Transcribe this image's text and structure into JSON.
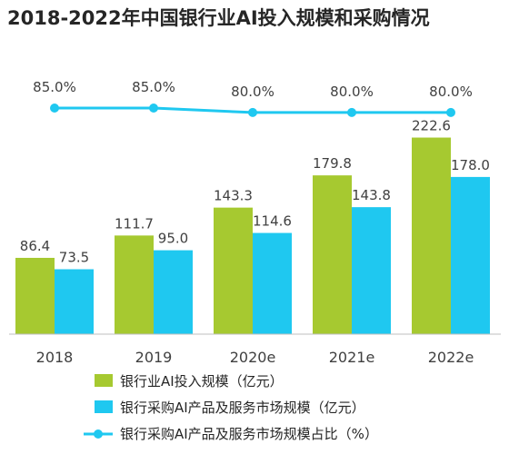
{
  "chart_data": {
    "type": "bar",
    "title": "2018-2022年中国银行业AI投入规模和采购情况",
    "categories": [
      "2018",
      "2019",
      "2020e",
      "2021e",
      "2022e"
    ],
    "series": [
      {
        "name": "银行业AI投入规模（亿元）",
        "type": "bar",
        "color": "#a6c930",
        "values": [
          86.4,
          111.7,
          143.3,
          179.8,
          222.6
        ]
      },
      {
        "name": "银行采购AI产品及服务市场规模（亿元）",
        "type": "bar",
        "color": "#1fc8f0",
        "values": [
          73.5,
          95.0,
          114.6,
          143.8,
          178.0
        ]
      },
      {
        "name": "银行采购AI产品及服务市场规模占比（%）",
        "type": "line",
        "color": "#1fc8f0",
        "values": [
          85.0,
          85.0,
          80.0,
          80.0,
          80.0
        ]
      }
    ],
    "value_labels": {
      "bar_1": [
        "86.4",
        "111.7",
        "143.3",
        "179.8",
        "222.6"
      ],
      "bar_2": [
        "73.5",
        "95.0",
        "114.6",
        "143.8",
        "178.0"
      ],
      "line": [
        "85.0%",
        "85.0%",
        "80.0%",
        "80.0%",
        "80.0%"
      ]
    },
    "ylim": [
      0,
      250
    ],
    "line_ylim": [
      0,
      100
    ],
    "grid": false,
    "legend_position": "bottom-left"
  }
}
